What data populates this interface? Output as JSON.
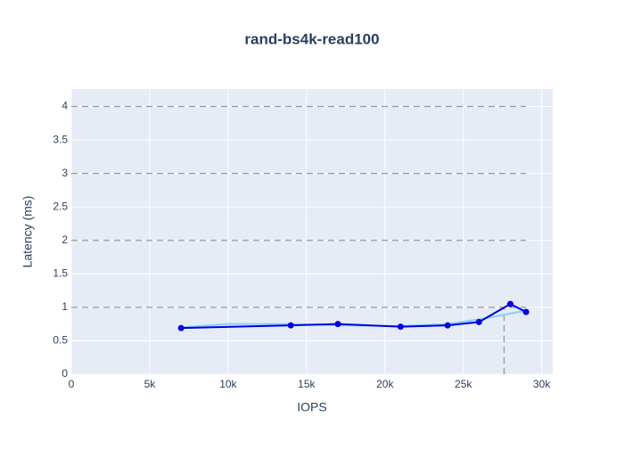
{
  "chart_data": {
    "type": "line",
    "title": "rand-bs4k-read100",
    "x_label": "IOPS",
    "y_label": "Latency (ms)",
    "series": [
      {
        "color": "#87cefa",
        "x": [
          7000,
          10000,
          14000,
          17000,
          21000,
          24000,
          26000,
          29000
        ],
        "values": [
          0.7,
          0.75,
          0.75,
          0.73,
          0.72,
          0.75,
          0.82,
          0.95
        ],
        "markers": false
      },
      {
        "color": "#0000e0",
        "x": [
          7000,
          14000,
          17000,
          21000,
          24000,
          26000,
          28000,
          29000
        ],
        "values": [
          0.69,
          0.73,
          0.75,
          0.71,
          0.73,
          0.78,
          1.05,
          0.93
        ],
        "markers": true
      }
    ],
    "hlines": [
      1,
      2,
      3,
      4
    ],
    "hline_xmax": 29000,
    "vline": {
      "x": 27600,
      "ymax": 1.0
    },
    "xlim": [
      0,
      30700
    ],
    "ylim": [
      0,
      4.26
    ],
    "xticks": [
      0,
      {
        "value": 5000,
        "label": "5k"
      },
      {
        "value": 10000,
        "label": "10k"
      },
      {
        "value": 15000,
        "label": "15k"
      },
      {
        "value": 20000,
        "label": "20k"
      },
      {
        "value": 25000,
        "label": "25k"
      },
      {
        "value": 30000,
        "label": "30k"
      }
    ],
    "yticks": [
      0,
      0.5,
      1,
      1.5,
      2,
      2.5,
      3,
      3.5,
      4
    ],
    "grid": true
  }
}
